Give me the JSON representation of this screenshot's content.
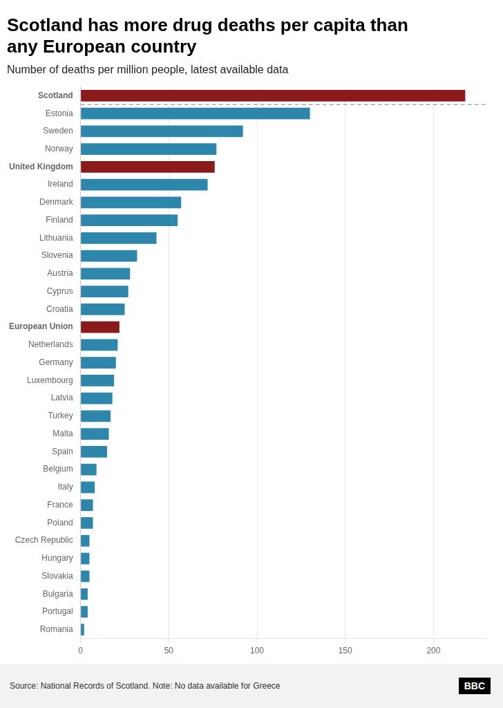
{
  "chart_data": {
    "type": "bar",
    "orientation": "horizontal",
    "title": [
      "Scotland has more drug deaths per capita than",
      "any European country"
    ],
    "subtitle": "Number of deaths per million people, latest available data",
    "annotations": [
      "Source: National Records of Scotland. Note: No data available for Greece",
      "BBC"
    ],
    "categories": [
      "Scotland",
      "Estonia",
      "Sweden",
      "Norway",
      "United Kingdom",
      "Ireland",
      "Denmark",
      "Finland",
      "Lithuania",
      "Slovenia",
      "Austria",
      "Cyprus",
      "Croatia",
      "European Union",
      "Netherlands",
      "Germany",
      "Luxembourg",
      "Latvia",
      "Turkey",
      "Malta",
      "Spain",
      "Belgium",
      "Italy",
      "France",
      "Poland",
      "Czech Republic",
      "Hungary",
      "Slovakia",
      "Bulgaria",
      "Portugal",
      "Romania"
    ],
    "values": [
      218,
      130,
      92,
      77,
      76,
      72,
      57,
      55,
      43,
      32,
      28,
      27,
      25,
      22,
      21,
      20,
      19,
      18,
      17,
      16,
      15,
      9,
      8,
      7,
      7,
      5,
      5,
      5,
      4,
      4,
      2
    ],
    "colors": [
      "#8B1A1A",
      "#2E86AB",
      "#2E86AB",
      "#2E86AB",
      "#8B1A1A",
      "#2E86AB",
      "#2E86AB",
      "#2E86AB",
      "#2E86AB",
      "#2E86AB",
      "#2E86AB",
      "#2E86AB",
      "#2E86AB",
      "#8B1A1A",
      "#2E86AB",
      "#2E86AB",
      "#2E86AB",
      "#2E86AB",
      "#2E86AB",
      "#2E86AB",
      "#2E86AB",
      "#2E86AB",
      "#2E86AB",
      "#2E86AB",
      "#2E86AB",
      "#2E86AB",
      "#2E86AB",
      "#2E86AB",
      "#2E86AB",
      "#2E86AB",
      "#2E86AB"
    ],
    "xlim": [
      0,
      230
    ],
    "xticks": [
      0,
      50,
      100,
      150,
      200
    ],
    "grid": true
  }
}
